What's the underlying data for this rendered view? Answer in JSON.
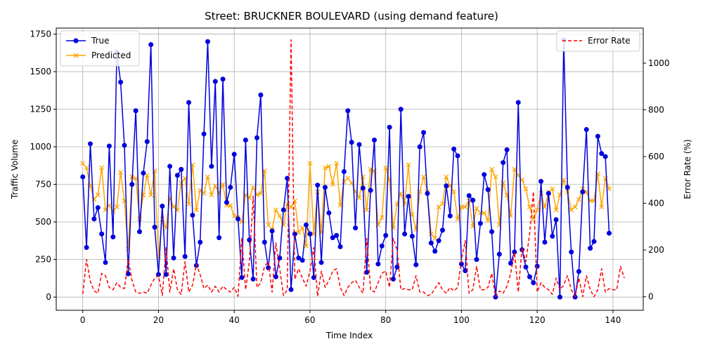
{
  "chart_data": {
    "type": "line",
    "title": "Street: BRUCKNER BOULEVARD (using demand feature)",
    "xlabel": "Time Index",
    "ylabel_left": "Traffic Volume",
    "ylabel_right": "Error Rate (%)",
    "xlim": [
      -7,
      148
    ],
    "ylim_left": [
      -88,
      1790
    ],
    "ylim_right": [
      -58,
      1150
    ],
    "x_ticks": [
      0,
      20,
      40,
      60,
      80,
      100,
      120,
      140
    ],
    "y_ticks_left": [
      0,
      250,
      500,
      750,
      1000,
      1250,
      1500,
      1750
    ],
    "y_ticks_right": [
      0,
      200,
      400,
      600,
      800,
      1000
    ],
    "grid": true,
    "legend_left_position": "upper-left",
    "legend_right_position": "upper-right",
    "series": [
      {
        "name": "True",
        "axis": "left",
        "color": "#0000dd",
        "marker": "circle",
        "values": [
          800,
          330,
          1020,
          520,
          595,
          420,
          230,
          1005,
          400,
          1630,
          1430,
          1010,
          155,
          750,
          1240,
          435,
          825,
          1035,
          1680,
          465,
          150,
          605,
          150,
          870,
          260,
          810,
          850,
          270,
          1295,
          545,
          210,
          365,
          1085,
          1700,
          870,
          1435,
          395,
          1450,
          630,
          730,
          950,
          520,
          130,
          1045,
          380,
          120,
          1060,
          1345,
          365,
          195,
          440,
          135,
          260,
          580,
          790,
          50,
          420,
          260,
          245,
          480,
          420,
          130,
          745,
          230,
          730,
          560,
          395,
          410,
          335,
          835,
          1240,
          1030,
          460,
          1015,
          725,
          165,
          710,
          1045,
          220,
          340,
          410,
          1130,
          120,
          200,
          1250,
          420,
          670,
          405,
          215,
          1000,
          1095,
          690,
          360,
          305,
          375,
          445,
          740,
          540,
          985,
          940,
          220,
          175,
          675,
          645,
          250,
          490,
          815,
          715,
          435,
          0,
          285,
          895,
          980,
          225,
          300,
          1295,
          315,
          200,
          135,
          95,
          205,
          770,
          365,
          690,
          405,
          515,
          0,
          1710,
          730,
          300,
          0,
          170,
          700,
          1115,
          325,
          370,
          1070,
          955,
          935,
          425
        ]
      },
      {
        "name": "Predicted",
        "axis": "left",
        "color": "#ffa500",
        "marker": "x",
        "values": [
          890,
          860,
          740,
          650,
          680,
          860,
          580,
          610,
          570,
          600,
          830,
          640,
          320,
          800,
          790,
          520,
          680,
          810,
          680,
          840,
          270,
          520,
          460,
          660,
          600,
          580,
          760,
          790,
          620,
          880,
          580,
          710,
          690,
          800,
          680,
          740,
          690,
          750,
          610,
          610,
          540,
          530,
          500,
          680,
          660,
          730,
          680,
          690,
          840,
          480,
          450,
          580,
          540,
          480,
          620,
          600,
          640,
          430,
          460,
          340,
          890,
          420,
          700,
          430,
          860,
          870,
          750,
          890,
          610,
          770,
          790,
          760,
          700,
          660,
          800,
          580,
          850,
          840,
          480,
          530,
          860,
          780,
          460,
          620,
          690,
          620,
          880,
          550,
          450,
          700,
          800,
          700,
          420,
          390,
          600,
          620,
          800,
          740,
          700,
          520,
          600,
          600,
          640,
          470,
          590,
          560,
          560,
          510,
          850,
          800,
          480,
          760,
          680,
          540,
          850,
          810,
          780,
          720,
          600,
          520,
          580,
          690,
          600,
          700,
          720,
          580,
          680,
          780,
          700,
          580,
          600,
          650,
          720,
          700,
          640,
          640,
          820,
          600,
          790,
          720
        ]
      },
      {
        "name": "Error Rate",
        "axis": "right",
        "color": "#ff0000",
        "dash": "dashed",
        "values": [
          12,
          160,
          65,
          25,
          15,
          100,
          90,
          40,
          30,
          60,
          40,
          35,
          160,
          70,
          20,
          15,
          20,
          15,
          50,
          80,
          90,
          6,
          210,
          20,
          120,
          30,
          10,
          150,
          20,
          50,
          140,
          95,
          35,
          50,
          20,
          45,
          20,
          45,
          30,
          20,
          40,
          2,
          250,
          30,
          150,
          430,
          40,
          60,
          130,
          150,
          20,
          230,
          120,
          5,
          30,
          1100,
          75,
          120,
          80,
          45,
          110,
          210,
          2,
          110,
          40,
          70,
          110,
          120,
          40,
          5,
          40,
          60,
          70,
          40,
          15,
          250,
          30,
          20,
          60,
          100,
          110,
          40,
          250,
          200,
          30,
          35,
          30,
          30,
          90,
          20,
          20,
          5,
          10,
          35,
          60,
          30,
          15,
          40,
          25,
          40,
          160,
          240,
          15,
          30,
          130,
          30,
          30,
          40,
          100,
          1,
          25,
          15,
          45,
          100,
          190,
          20,
          210,
          150,
          270,
          450,
          20,
          60,
          40,
          30,
          10,
          80,
          30,
          50,
          90,
          30,
          0,
          80,
          0,
          90,
          30,
          0,
          30,
          120,
          20,
          35,
          30,
          30,
          130,
          80
        ]
      }
    ]
  }
}
